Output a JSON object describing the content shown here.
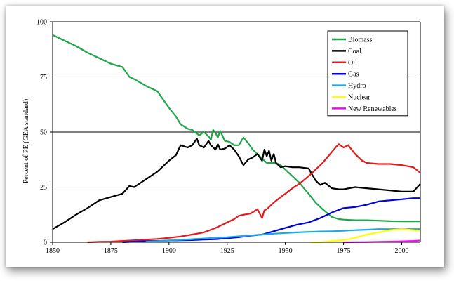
{
  "chart_data": {
    "type": "line",
    "title": "",
    "xlabel": "",
    "ylabel": "Percent of PE (GEA standard)",
    "xlim": [
      1850,
      2008
    ],
    "ylim": [
      0,
      100
    ],
    "x_ticks": [
      "1850",
      "1875",
      "1900",
      "1925",
      "1950",
      "1975",
      "2000"
    ],
    "y_ticks": [
      "0",
      "25",
      "50",
      "75",
      "100"
    ],
    "grid": "horizontal",
    "legend_position": "top-right",
    "series": [
      {
        "name": "Biomass",
        "color": "#1fa64a",
        "x": [
          1850,
          1855,
          1860,
          1865,
          1870,
          1875,
          1880,
          1883,
          1885,
          1890,
          1895,
          1900,
          1903,
          1905,
          1908,
          1910,
          1913,
          1915,
          1917,
          1918,
          1919,
          1920,
          1921,
          1922,
          1924,
          1926,
          1928,
          1930,
          1932,
          1934,
          1936,
          1938,
          1940,
          1942,
          1944,
          1946,
          1948,
          1950,
          1953,
          1956,
          1960,
          1963,
          1966,
          1970,
          1973,
          1975,
          1980,
          1985,
          1990,
          1995,
          2000,
          2008
        ],
        "values": [
          94,
          91.5,
          89,
          86,
          83.5,
          81,
          79.5,
          75,
          74,
          71,
          68.5,
          61,
          57,
          53.5,
          51.5,
          51,
          48.5,
          50,
          48,
          46.5,
          51,
          49.5,
          47.5,
          50.5,
          46,
          45.5,
          44,
          44,
          47.5,
          45,
          42,
          40,
          38,
          36,
          36,
          36,
          35,
          33,
          30,
          27,
          22,
          18,
          15,
          11.5,
          10.5,
          10.3,
          10,
          10,
          9.8,
          9.6,
          9.5,
          9.5
        ]
      },
      {
        "name": "Coal",
        "color": "#000000",
        "x": [
          1850,
          1855,
          1860,
          1865,
          1870,
          1875,
          1880,
          1883,
          1885,
          1890,
          1895,
          1900,
          1903,
          1905,
          1908,
          1910,
          1912,
          1913,
          1915,
          1917,
          1918,
          1920,
          1921,
          1922,
          1924,
          1926,
          1928,
          1930,
          1932,
          1934,
          1936,
          1938,
          1940,
          1941,
          1942,
          1943,
          1944,
          1945,
          1946,
          1948,
          1950,
          1953,
          1956,
          1960,
          1963,
          1965,
          1967,
          1970,
          1973,
          1975,
          1980,
          1985,
          1990,
          1995,
          2000,
          2005,
          2008
        ],
        "values": [
          6,
          9,
          12.5,
          15.5,
          19,
          20.5,
          22,
          25.5,
          25,
          28.5,
          32,
          37,
          39.5,
          44,
          43,
          44,
          47,
          44,
          43,
          46,
          44,
          42,
          44.5,
          42,
          42.5,
          44,
          42,
          39,
          35,
          37.5,
          38.5,
          40,
          37,
          42,
          39,
          41.5,
          37,
          40,
          36,
          34,
          34.5,
          34,
          34,
          33.5,
          28,
          26,
          27,
          24.5,
          24,
          24,
          25,
          24.5,
          24,
          23.5,
          23,
          23,
          26.5
        ]
      },
      {
        "name": "Oil",
        "color": "#e41a1c",
        "x": [
          1865,
          1870,
          1875,
          1880,
          1885,
          1890,
          1895,
          1900,
          1905,
          1910,
          1915,
          1920,
          1925,
          1928,
          1930,
          1932,
          1935,
          1938,
          1940,
          1941,
          1942,
          1945,
          1948,
          1950,
          1953,
          1956,
          1960,
          1963,
          1966,
          1970,
          1972,
          1973,
          1975,
          1977,
          1980,
          1983,
          1985,
          1990,
          1995,
          2000,
          2005,
          2008
        ],
        "values": [
          0,
          0.2,
          0.3,
          0.6,
          0.9,
          1.2,
          1.5,
          2,
          2.6,
          3.5,
          4.5,
          6.5,
          9,
          10.5,
          12,
          12.5,
          13,
          15,
          11,
          14.5,
          15,
          18,
          20.5,
          22,
          24.5,
          26.5,
          30,
          33,
          36,
          41,
          43.5,
          44.5,
          43,
          44,
          40,
          37,
          36,
          35.5,
          35.5,
          35,
          34,
          31.5
        ]
      },
      {
        "name": "Gas",
        "color": "#0000e0",
        "x": [
          1880,
          1885,
          1890,
          1895,
          1900,
          1905,
          1910,
          1915,
          1920,
          1925,
          1930,
          1935,
          1940,
          1945,
          1950,
          1955,
          1960,
          1965,
          1970,
          1975,
          1980,
          1985,
          1990,
          1995,
          2000,
          2005,
          2008
        ],
        "values": [
          0,
          0.3,
          0.5,
          0.6,
          0.8,
          0.9,
          1,
          1.2,
          1.4,
          1.8,
          2.3,
          3,
          3.5,
          5,
          6.5,
          8,
          9,
          11,
          13.5,
          15.5,
          16,
          17,
          18.5,
          19,
          19.5,
          20,
          20
        ]
      },
      {
        "name": "Hydro",
        "color": "#19a9e8",
        "x": [
          1890,
          1900,
          1910,
          1920,
          1925,
          1930,
          1935,
          1940,
          1945,
          1950,
          1955,
          1960,
          1965,
          1970,
          1975,
          1980,
          1985,
          1990,
          1995,
          2000,
          2005,
          2008
        ],
        "values": [
          0.2,
          0.8,
          1.4,
          2,
          2.3,
          2.7,
          3.1,
          3.5,
          3.9,
          4.2,
          4.5,
          4.7,
          4.9,
          5,
          5.2,
          5.5,
          5.7,
          6,
          6,
          6,
          6,
          6
        ]
      },
      {
        "name": "Nuclear",
        "color": "#ffff00",
        "x": [
          1961,
          1965,
          1970,
          1975,
          1980,
          1985,
          1990,
          1995,
          2000,
          2005,
          2008
        ],
        "values": [
          0,
          0,
          0.5,
          1,
          2,
          3.5,
          4.5,
          5.5,
          6,
          5.5,
          5.3
        ]
      },
      {
        "name": "New Renewables",
        "color": "#ff00ff",
        "x": [
          1975,
          1980,
          1985,
          1990,
          1995,
          2000,
          2005,
          2008
        ],
        "values": [
          0,
          0.05,
          0.1,
          0.2,
          0.3,
          0.4,
          0.6,
          0.8
        ]
      }
    ]
  }
}
